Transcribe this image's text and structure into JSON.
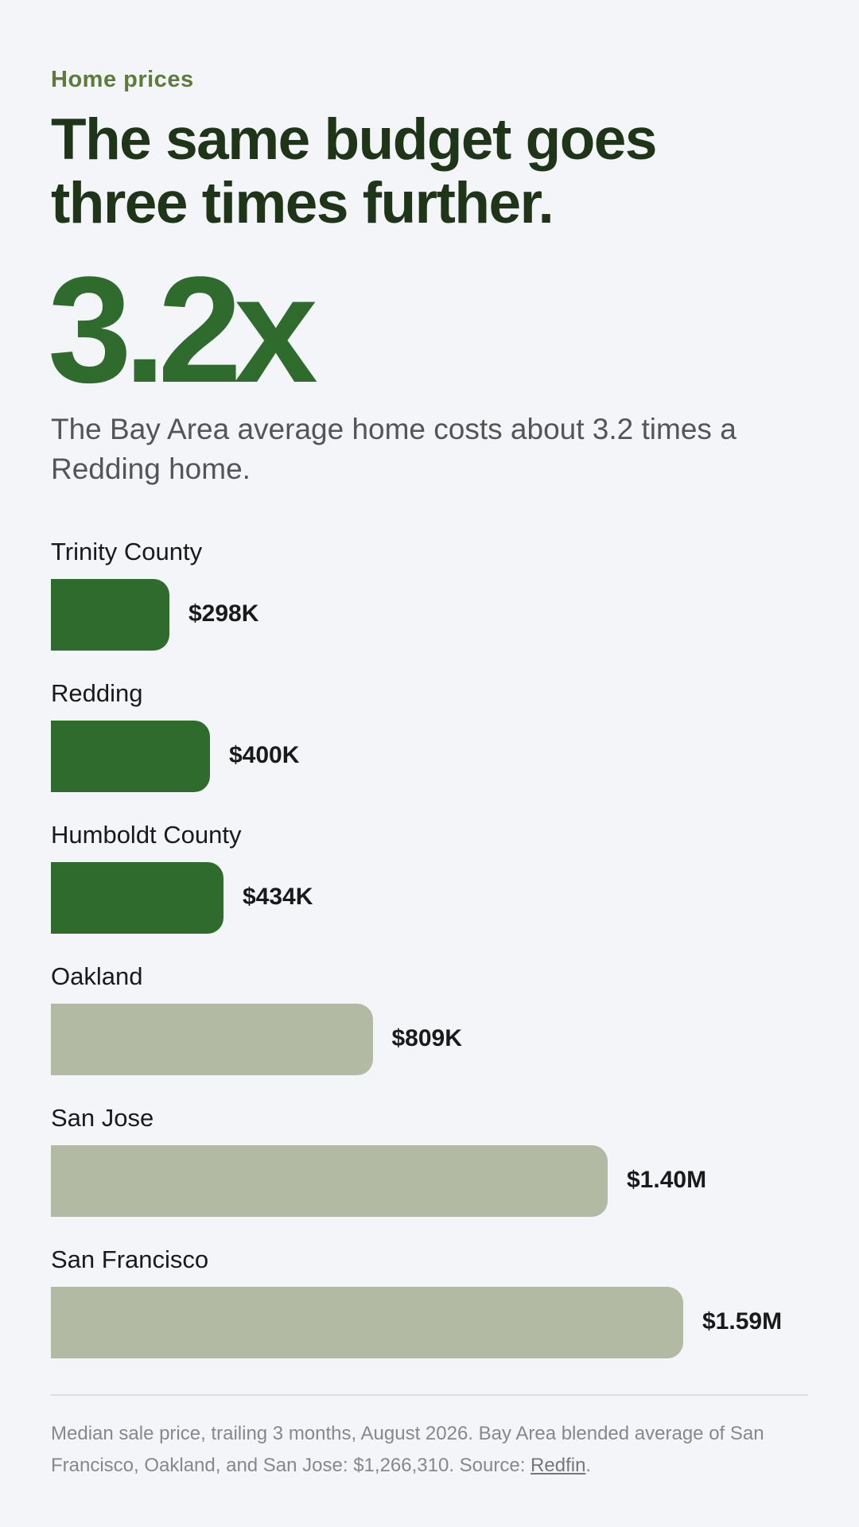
{
  "eyebrow": "Home prices",
  "headline": "The same budget goes three times further.",
  "big_stat": "3.2x",
  "subtitle": "The Bay Area average home costs about 3.2 times a Redding home.",
  "colors": {
    "highlight": "#2e6b2c",
    "muted": "#b3baa3",
    "background": "#f3f5f9"
  },
  "chart_data": {
    "type": "bar",
    "orientation": "horizontal",
    "categories": [
      "Trinity County",
      "Redding",
      "Humboldt County",
      "Oakland",
      "San Jose",
      "San Francisco"
    ],
    "values": [
      298000,
      400000,
      434000,
      809000,
      1400000,
      1590000
    ],
    "value_labels": [
      "$298K",
      "$400K",
      "$434K",
      "$809K",
      "$1.40M",
      "$1.59M"
    ],
    "highlighted": [
      true,
      true,
      true,
      false,
      false,
      false
    ],
    "xlim": [
      0,
      1750000
    ],
    "grid": false
  },
  "footnote": {
    "text": "Median sale price, trailing 3 months, August 2026. Bay Area blended average of San Francisco, Oakland, and San Jose: $1,266,310. Source: ",
    "link": "Redfin",
    "end": "."
  }
}
